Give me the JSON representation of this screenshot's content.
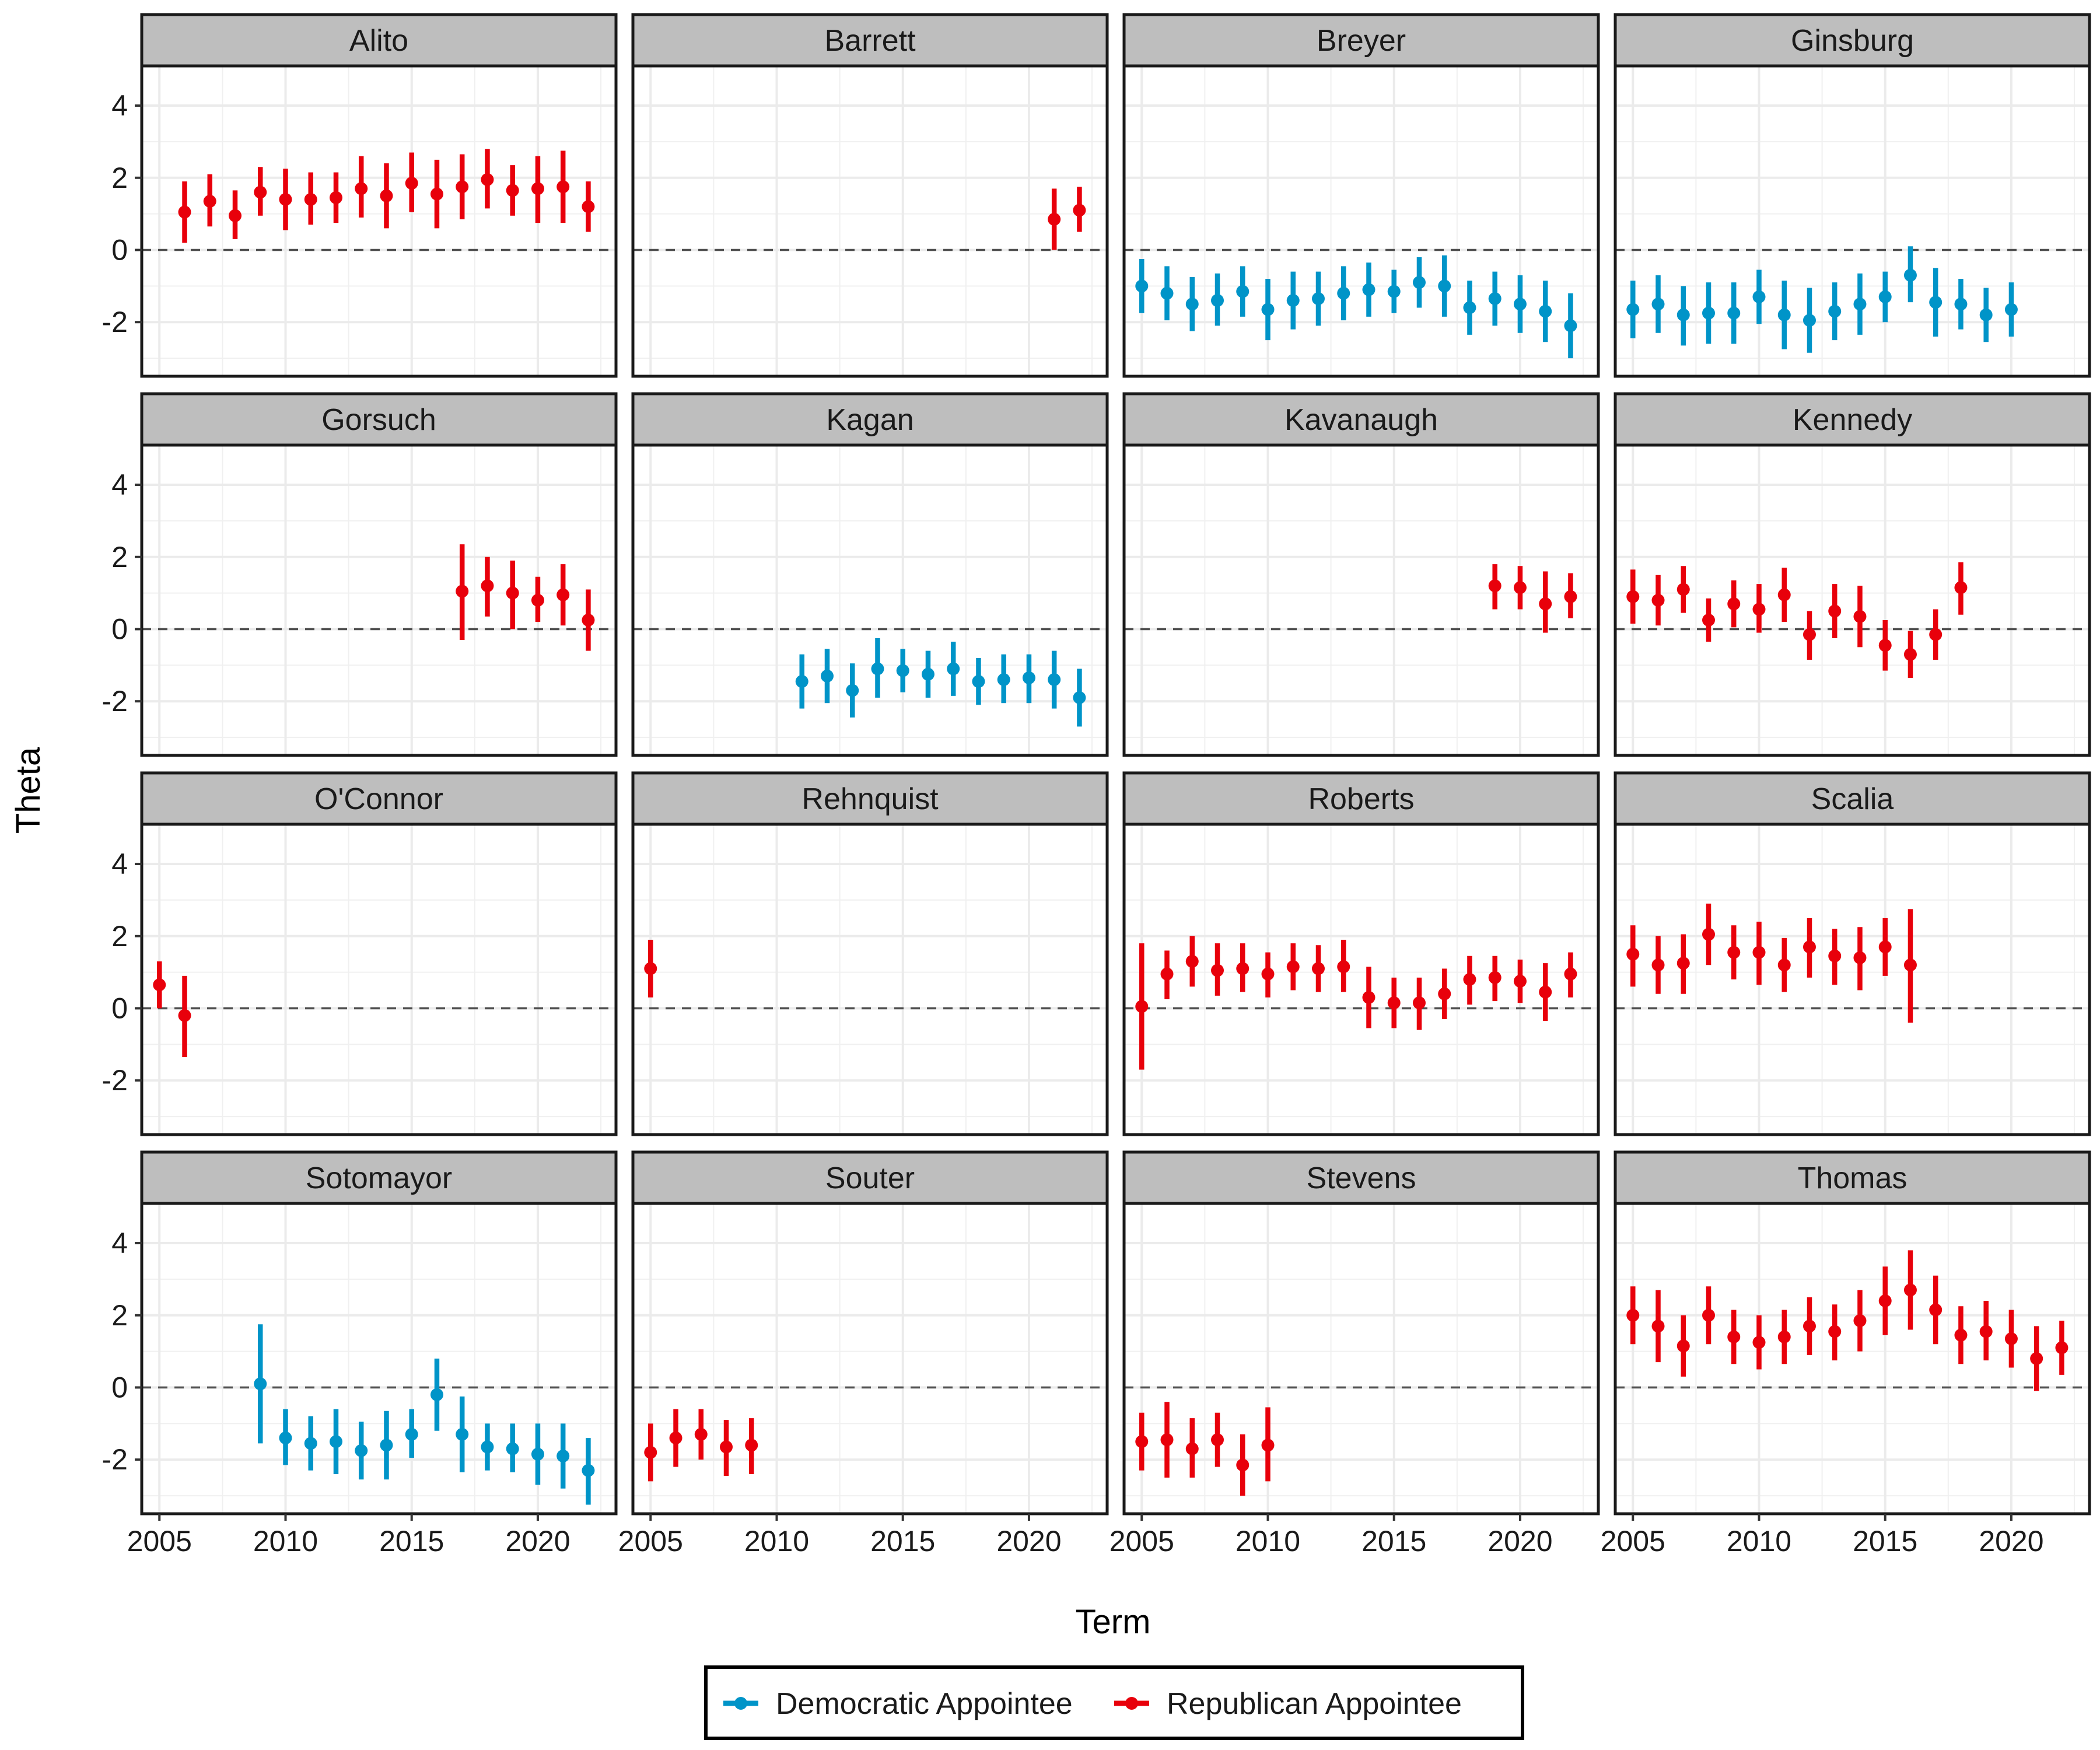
{
  "chart_data": {
    "type": "scatter",
    "subtype": "faceted point-range",
    "title": "",
    "xlabel": "Term",
    "ylabel": "Theta",
    "xlim": [
      2004.3,
      2023.1
    ],
    "ylim": [
      -3.5,
      5.1
    ],
    "x_ticks": [
      2005,
      2010,
      2015,
      2020
    ],
    "y_ticks": [
      4,
      2,
      0,
      -2
    ],
    "y_tick_labels": [
      "4",
      "2",
      "0",
      "-2"
    ],
    "reference_line": 0,
    "legend": [
      {
        "key": "dem",
        "label": "Democratic Appointee",
        "color": "#0094C8"
      },
      {
        "key": "rep",
        "label": "Republican Appointee",
        "color": "#E8000B"
      }
    ],
    "panels": [
      {
        "name": "Alito",
        "party": "rep",
        "x": [
          2006,
          2007,
          2008,
          2009,
          2010,
          2011,
          2012,
          2013,
          2014,
          2015,
          2016,
          2017,
          2018,
          2019,
          2020,
          2021,
          2022
        ],
        "y": [
          1.05,
          1.35,
          0.95,
          1.6,
          1.4,
          1.4,
          1.45,
          1.7,
          1.5,
          1.85,
          1.55,
          1.75,
          1.95,
          1.65,
          1.7,
          1.75,
          1.2
        ],
        "lo": [
          0.2,
          0.65,
          0.3,
          0.95,
          0.55,
          0.7,
          0.75,
          0.9,
          0.6,
          1.05,
          0.6,
          0.85,
          1.15,
          0.95,
          0.75,
          0.75,
          0.5
        ],
        "hi": [
          1.9,
          2.1,
          1.65,
          2.3,
          2.25,
          2.15,
          2.15,
          2.6,
          2.4,
          2.7,
          2.5,
          2.65,
          2.8,
          2.35,
          2.6,
          2.75,
          1.9
        ]
      },
      {
        "name": "Barrett",
        "party": "rep",
        "x": [
          2021,
          2022
        ],
        "y": [
          0.85,
          1.1
        ],
        "lo": [
          0.0,
          0.5
        ],
        "hi": [
          1.7,
          1.75
        ]
      },
      {
        "name": "Breyer",
        "party": "dem",
        "x": [
          2005,
          2006,
          2007,
          2008,
          2009,
          2010,
          2011,
          2012,
          2013,
          2014,
          2015,
          2016,
          2017,
          2018,
          2019,
          2020,
          2021,
          2022
        ],
        "y": [
          -1.0,
          -1.2,
          -1.5,
          -1.4,
          -1.15,
          -1.65,
          -1.4,
          -1.35,
          -1.2,
          -1.1,
          -1.15,
          -0.9,
          -1.0,
          -1.6,
          -1.35,
          -1.5,
          -1.7,
          -2.1
        ],
        "lo": [
          -1.75,
          -1.95,
          -2.25,
          -2.1,
          -1.85,
          -2.5,
          -2.2,
          -2.1,
          -1.95,
          -1.85,
          -1.75,
          -1.6,
          -1.85,
          -2.35,
          -2.1,
          -2.3,
          -2.55,
          -3.0
        ],
        "hi": [
          -0.25,
          -0.45,
          -0.75,
          -0.65,
          -0.45,
          -0.8,
          -0.6,
          -0.6,
          -0.45,
          -0.35,
          -0.55,
          -0.2,
          -0.15,
          -0.85,
          -0.6,
          -0.7,
          -0.85,
          -1.2
        ]
      },
      {
        "name": "Ginsburg",
        "party": "dem",
        "x": [
          2005,
          2006,
          2007,
          2008,
          2009,
          2010,
          2011,
          2012,
          2013,
          2014,
          2015,
          2016,
          2017,
          2018,
          2019,
          2020
        ],
        "y": [
          -1.65,
          -1.5,
          -1.8,
          -1.75,
          -1.75,
          -1.3,
          -1.8,
          -1.95,
          -1.7,
          -1.5,
          -1.3,
          -0.7,
          -1.45,
          -1.5,
          -1.8,
          -1.65
        ],
        "lo": [
          -2.45,
          -2.3,
          -2.65,
          -2.6,
          -2.6,
          -2.05,
          -2.75,
          -2.85,
          -2.5,
          -2.35,
          -2.0,
          -1.45,
          -2.4,
          -2.2,
          -2.55,
          -2.4
        ],
        "hi": [
          -0.85,
          -0.7,
          -1.0,
          -0.9,
          -0.9,
          -0.55,
          -0.85,
          -1.05,
          -0.9,
          -0.65,
          -0.6,
          0.1,
          -0.5,
          -0.8,
          -1.05,
          -0.9
        ]
      },
      {
        "name": "Gorsuch",
        "party": "rep",
        "x": [
          2017,
          2018,
          2019,
          2020,
          2021,
          2022
        ],
        "y": [
          1.05,
          1.2,
          1.0,
          0.8,
          0.95,
          0.25
        ],
        "lo": [
          -0.3,
          0.35,
          0.0,
          0.2,
          0.1,
          -0.6
        ],
        "hi": [
          2.35,
          2.0,
          1.9,
          1.45,
          1.8,
          1.1
        ]
      },
      {
        "name": "Kagan",
        "party": "dem",
        "x": [
          2011,
          2012,
          2013,
          2014,
          2015,
          2016,
          2017,
          2018,
          2019,
          2020,
          2021,
          2022
        ],
        "y": [
          -1.45,
          -1.3,
          -1.7,
          -1.1,
          -1.15,
          -1.25,
          -1.1,
          -1.45,
          -1.4,
          -1.35,
          -1.4,
          -1.9
        ],
        "lo": [
          -2.2,
          -2.05,
          -2.45,
          -1.9,
          -1.75,
          -1.9,
          -1.85,
          -2.1,
          -2.05,
          -2.05,
          -2.2,
          -2.7
        ],
        "hi": [
          -0.7,
          -0.55,
          -0.95,
          -0.25,
          -0.55,
          -0.6,
          -0.35,
          -0.8,
          -0.7,
          -0.7,
          -0.6,
          -1.1
        ]
      },
      {
        "name": "Kavanaugh",
        "party": "rep",
        "x": [
          2019,
          2020,
          2021,
          2022
        ],
        "y": [
          1.2,
          1.15,
          0.7,
          0.9
        ],
        "lo": [
          0.55,
          0.55,
          -0.1,
          0.3
        ],
        "hi": [
          1.8,
          1.75,
          1.6,
          1.55
        ]
      },
      {
        "name": "Kennedy",
        "party": "rep",
        "x": [
          2005,
          2006,
          2007,
          2008,
          2009,
          2010,
          2011,
          2012,
          2013,
          2014,
          2015,
          2016,
          2017,
          2018
        ],
        "y": [
          0.9,
          0.8,
          1.1,
          0.25,
          0.7,
          0.55,
          0.95,
          -0.15,
          0.5,
          0.35,
          -0.45,
          -0.7,
          -0.15,
          1.15
        ],
        "lo": [
          0.15,
          0.1,
          0.45,
          -0.35,
          0.05,
          -0.1,
          0.2,
          -0.85,
          -0.25,
          -0.5,
          -1.15,
          -1.35,
          -0.85,
          0.4
        ],
        "hi": [
          1.65,
          1.5,
          1.75,
          0.85,
          1.35,
          1.25,
          1.7,
          0.5,
          1.25,
          1.2,
          0.25,
          -0.05,
          0.55,
          1.85
        ]
      },
      {
        "name": "O'Connor",
        "party": "rep",
        "x": [
          2005,
          2006
        ],
        "y": [
          0.65,
          -0.2
        ],
        "lo": [
          0.0,
          -1.35
        ],
        "hi": [
          1.3,
          0.9
        ]
      },
      {
        "name": "Rehnquist",
        "party": "rep",
        "x": [
          2005
        ],
        "y": [
          1.1
        ],
        "lo": [
          0.3
        ],
        "hi": [
          1.9
        ]
      },
      {
        "name": "Roberts",
        "party": "rep",
        "x": [
          2005,
          2006,
          2007,
          2008,
          2009,
          2010,
          2011,
          2012,
          2013,
          2014,
          2015,
          2016,
          2017,
          2018,
          2019,
          2020,
          2021,
          2022
        ],
        "y": [
          0.05,
          0.95,
          1.3,
          1.05,
          1.1,
          0.95,
          1.15,
          1.1,
          1.15,
          0.3,
          0.15,
          0.15,
          0.4,
          0.8,
          0.85,
          0.75,
          0.45,
          0.95
        ],
        "lo": [
          -1.7,
          0.25,
          0.6,
          0.35,
          0.45,
          0.3,
          0.5,
          0.45,
          0.45,
          -0.55,
          -0.55,
          -0.6,
          -0.3,
          0.1,
          0.2,
          0.15,
          -0.35,
          0.3
        ],
        "hi": [
          1.8,
          1.6,
          2.0,
          1.8,
          1.8,
          1.55,
          1.8,
          1.75,
          1.9,
          1.15,
          0.85,
          0.85,
          1.1,
          1.45,
          1.45,
          1.35,
          1.25,
          1.55
        ]
      },
      {
        "name": "Scalia",
        "party": "rep",
        "x": [
          2005,
          2006,
          2007,
          2008,
          2009,
          2010,
          2011,
          2012,
          2013,
          2014,
          2015,
          2016
        ],
        "y": [
          1.5,
          1.2,
          1.25,
          2.05,
          1.55,
          1.55,
          1.2,
          1.7,
          1.45,
          1.4,
          1.7,
          1.2
        ],
        "lo": [
          0.6,
          0.4,
          0.4,
          1.2,
          0.8,
          0.65,
          0.45,
          0.85,
          0.65,
          0.5,
          0.9,
          -0.4
        ],
        "hi": [
          2.3,
          2.0,
          2.05,
          2.9,
          2.3,
          2.4,
          1.95,
          2.5,
          2.2,
          2.25,
          2.5,
          2.75
        ]
      },
      {
        "name": "Sotomayor",
        "party": "dem",
        "x": [
          2009,
          2010,
          2011,
          2012,
          2013,
          2014,
          2015,
          2016,
          2017,
          2018,
          2019,
          2020,
          2021,
          2022
        ],
        "y": [
          0.1,
          -1.4,
          -1.55,
          -1.5,
          -1.75,
          -1.6,
          -1.3,
          -0.2,
          -1.3,
          -1.65,
          -1.7,
          -1.85,
          -1.9,
          -2.3
        ],
        "lo": [
          -1.55,
          -2.15,
          -2.3,
          -2.4,
          -2.55,
          -2.55,
          -1.95,
          -1.2,
          -2.35,
          -2.3,
          -2.35,
          -2.7,
          -2.8,
          -3.25
        ],
        "hi": [
          1.75,
          -0.6,
          -0.8,
          -0.6,
          -0.95,
          -0.65,
          -0.6,
          0.8,
          -0.25,
          -1.0,
          -1.0,
          -1.0,
          -1.0,
          -1.4
        ]
      },
      {
        "name": "Souter",
        "party": "rep",
        "x": [
          2005,
          2006,
          2007,
          2008,
          2009
        ],
        "y": [
          -1.8,
          -1.4,
          -1.3,
          -1.65,
          -1.6
        ],
        "lo": [
          -2.6,
          -2.2,
          -2.0,
          -2.45,
          -2.4
        ],
        "hi": [
          -1.0,
          -0.6,
          -0.6,
          -0.9,
          -0.85
        ]
      },
      {
        "name": "Stevens",
        "party": "rep",
        "x": [
          2005,
          2006,
          2007,
          2008,
          2009,
          2010
        ],
        "y": [
          -1.5,
          -1.45,
          -1.7,
          -1.45,
          -2.15,
          -1.6
        ],
        "lo": [
          -2.3,
          -2.5,
          -2.5,
          -2.2,
          -3.0,
          -2.6
        ],
        "hi": [
          -0.7,
          -0.4,
          -0.85,
          -0.7,
          -1.3,
          -0.55
        ]
      },
      {
        "name": "Thomas",
        "party": "rep",
        "x": [
          2005,
          2006,
          2007,
          2008,
          2009,
          2010,
          2011,
          2012,
          2013,
          2014,
          2015,
          2016,
          2017,
          2018,
          2019,
          2020,
          2021,
          2022
        ],
        "y": [
          2.0,
          1.7,
          1.15,
          2.0,
          1.4,
          1.25,
          1.4,
          1.7,
          1.55,
          1.85,
          2.4,
          2.7,
          2.15,
          1.45,
          1.55,
          1.35,
          0.8,
          1.1
        ],
        "lo": [
          1.2,
          0.7,
          0.3,
          1.2,
          0.65,
          0.5,
          0.65,
          0.9,
          0.75,
          1.0,
          1.45,
          1.6,
          1.2,
          0.65,
          0.75,
          0.55,
          -0.1,
          0.35
        ],
        "hi": [
          2.8,
          2.7,
          2.0,
          2.8,
          2.15,
          2.0,
          2.15,
          2.5,
          2.3,
          2.7,
          3.35,
          3.8,
          3.1,
          2.25,
          2.4,
          2.15,
          1.7,
          1.85
        ]
      }
    ]
  }
}
